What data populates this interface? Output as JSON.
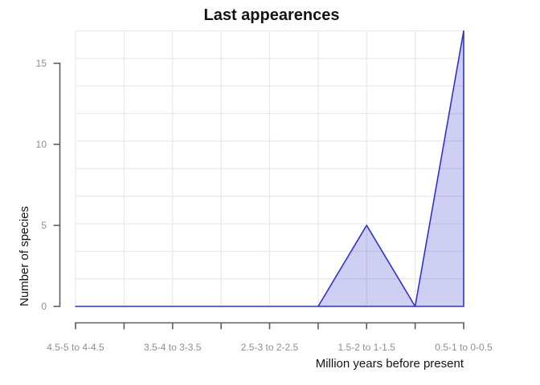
{
  "chart_data": {
    "type": "area",
    "title": "Last appearences",
    "xlabel": "Million years before present",
    "ylabel": "Number of species",
    "x_tick_labels": [
      "4.5-5 to 4-4.5",
      "3.5-4 to 3-3.5",
      "2.5-3 to 2-2.5",
      "1.5-2 to 1-1.5",
      "0.5-1 to 0-0.5"
    ],
    "labeled_tick_indices": [
      0,
      2,
      4,
      6,
      8
    ],
    "x_points": 9,
    "values": [
      0,
      0,
      0,
      0,
      0,
      0,
      5,
      0,
      17
    ],
    "y_ticks": [
      0,
      5,
      10,
      15
    ],
    "ylim": [
      0,
      17
    ],
    "grid": "on",
    "grid_divisions": 10,
    "legend": "none",
    "colors": {
      "line": "#3232cd",
      "fill": "rgba(50,50,205,0.235)",
      "grid": "#e8e8e8",
      "axis": "#5e5e5e",
      "tick_label": "#8e8e8e",
      "text": "#141414",
      "background": "#ffffff"
    }
  }
}
